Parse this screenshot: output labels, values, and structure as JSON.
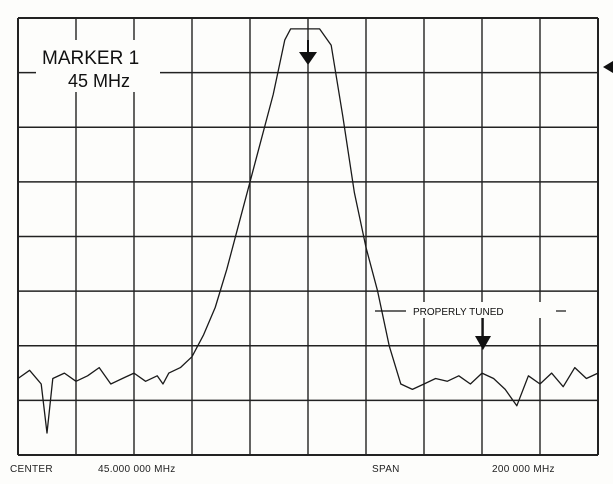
{
  "marker_box": {
    "line1": "MARKER 1",
    "line2": "45 MHz"
  },
  "callout": {
    "label": "PROPERLY TUNED"
  },
  "footer": {
    "center_label": "CENTER",
    "center_value": "45.000 000 MHz",
    "span_label": "SPAN",
    "span_value": "200 000 MHz"
  },
  "chart_data": {
    "type": "line",
    "grid": true,
    "grid_divisions": {
      "x": 10,
      "y": 8
    },
    "xlim": [
      0,
      10
    ],
    "ylim": [
      0,
      8
    ],
    "series": [
      {
        "x": [
          0,
          0.2,
          0.4,
          0.5,
          0.6,
          0.8,
          1.0,
          1.2,
          1.4,
          1.6,
          1.8,
          2.0,
          2.2,
          2.4,
          2.5,
          2.6,
          2.8,
          3.0,
          3.2,
          3.4,
          3.6,
          3.8,
          4.0,
          4.2,
          4.4,
          4.6,
          4.7,
          4.8,
          5.0,
          5.2,
          5.4,
          5.6,
          5.8,
          6.0,
          6.2,
          6.4,
          6.6,
          6.8,
          7.0,
          7.2,
          7.4,
          7.6,
          7.8,
          8.0,
          8.2,
          8.4,
          8.6,
          8.8,
          9.0,
          9.2,
          9.4,
          9.6,
          9.8,
          10.0
        ],
        "y": [
          1.4,
          1.55,
          1.3,
          0.4,
          1.4,
          1.5,
          1.35,
          1.45,
          1.6,
          1.3,
          1.4,
          1.5,
          1.35,
          1.45,
          1.3,
          1.5,
          1.6,
          1.8,
          2.2,
          2.7,
          3.4,
          4.2,
          5.0,
          5.8,
          6.6,
          7.6,
          7.8,
          7.8,
          7.8,
          7.8,
          7.5,
          6.2,
          4.8,
          3.8,
          3.0,
          2.0,
          1.3,
          1.2,
          1.3,
          1.4,
          1.35,
          1.45,
          1.3,
          1.5,
          1.4,
          1.2,
          0.9,
          1.45,
          1.3,
          1.5,
          1.25,
          1.6,
          1.4,
          1.5
        ]
      }
    ]
  }
}
